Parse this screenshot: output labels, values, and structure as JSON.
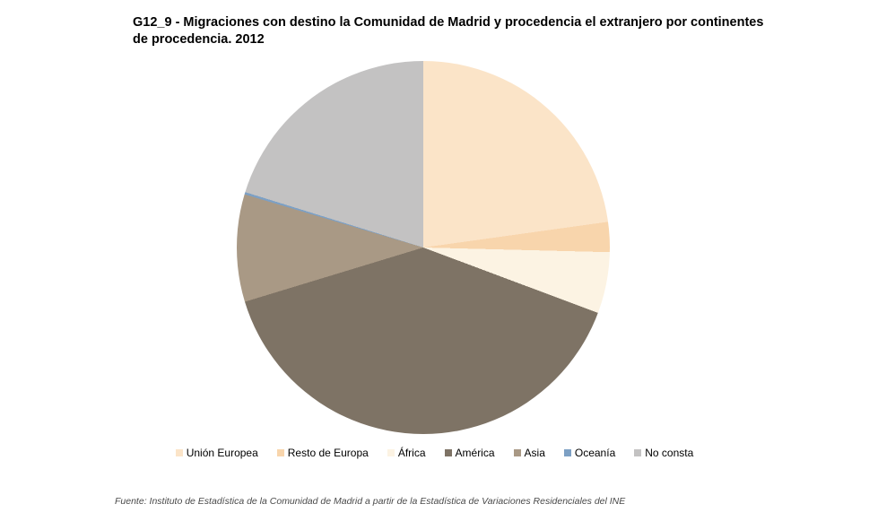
{
  "title": "G12_9 - Migraciones con destino la Comunidad de Madrid y procedencia el extranjero por continentes de procedencia. 2012",
  "source_note": "Fuente: Instituto de Estadística de la Comunidad de Madrid a partir de la Estadística de Variaciones Residenciales del INE",
  "chart_data": {
    "type": "pie",
    "title": "G12_9 - Migraciones con destino la Comunidad de Madrid y procedencia el extranjero por continentes de procedencia. 2012",
    "categories": [
      "Unión Europea",
      "Resto de Europa",
      "África",
      "América",
      "Asia",
      "Oceanía",
      "No consta"
    ],
    "values": [
      22.8,
      2.6,
      5.3,
      39.6,
      9.3,
      0.2,
      20.2
    ],
    "values_unit": "% of total (estimated from slice angles; no data labels shown)",
    "colors": [
      "#FBE4C8",
      "#F8D5AC",
      "#FCF3E3",
      "#7E7365",
      "#A99985",
      "#7DA0C4",
      "#C3C2C2"
    ],
    "start_angle_deg": 0,
    "direction": "clockwise",
    "legend_position": "bottom",
    "data_labels": false,
    "background": "#FFFFFF"
  }
}
